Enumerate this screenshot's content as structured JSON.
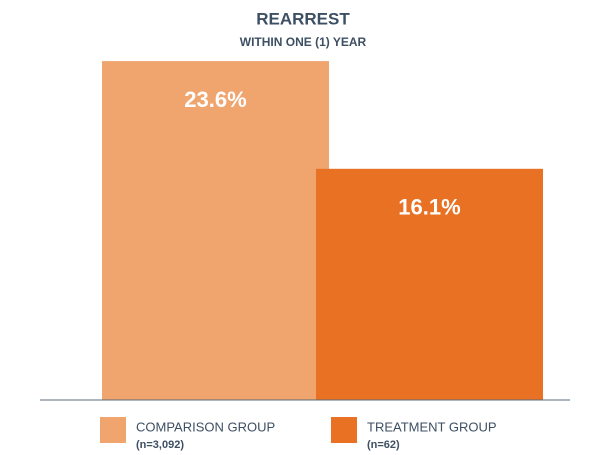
{
  "chart_data": {
    "type": "bar",
    "title": "REARREST",
    "subtitle": "WITHIN ONE (1) YEAR",
    "series": [
      {
        "name": "COMPARISON GROUP",
        "sample": "(n=3,092)",
        "color": "#f0a46e",
        "values": [
          23.6
        ],
        "value_labels": [
          "23.6%"
        ]
      },
      {
        "name": "TREATMENT GROUP",
        "sample": "(n=62)",
        "color": "#e87124",
        "values": [
          16.1
        ],
        "value_labels": [
          "16.1%"
        ]
      }
    ],
    "ylim": [
      0,
      25
    ]
  }
}
